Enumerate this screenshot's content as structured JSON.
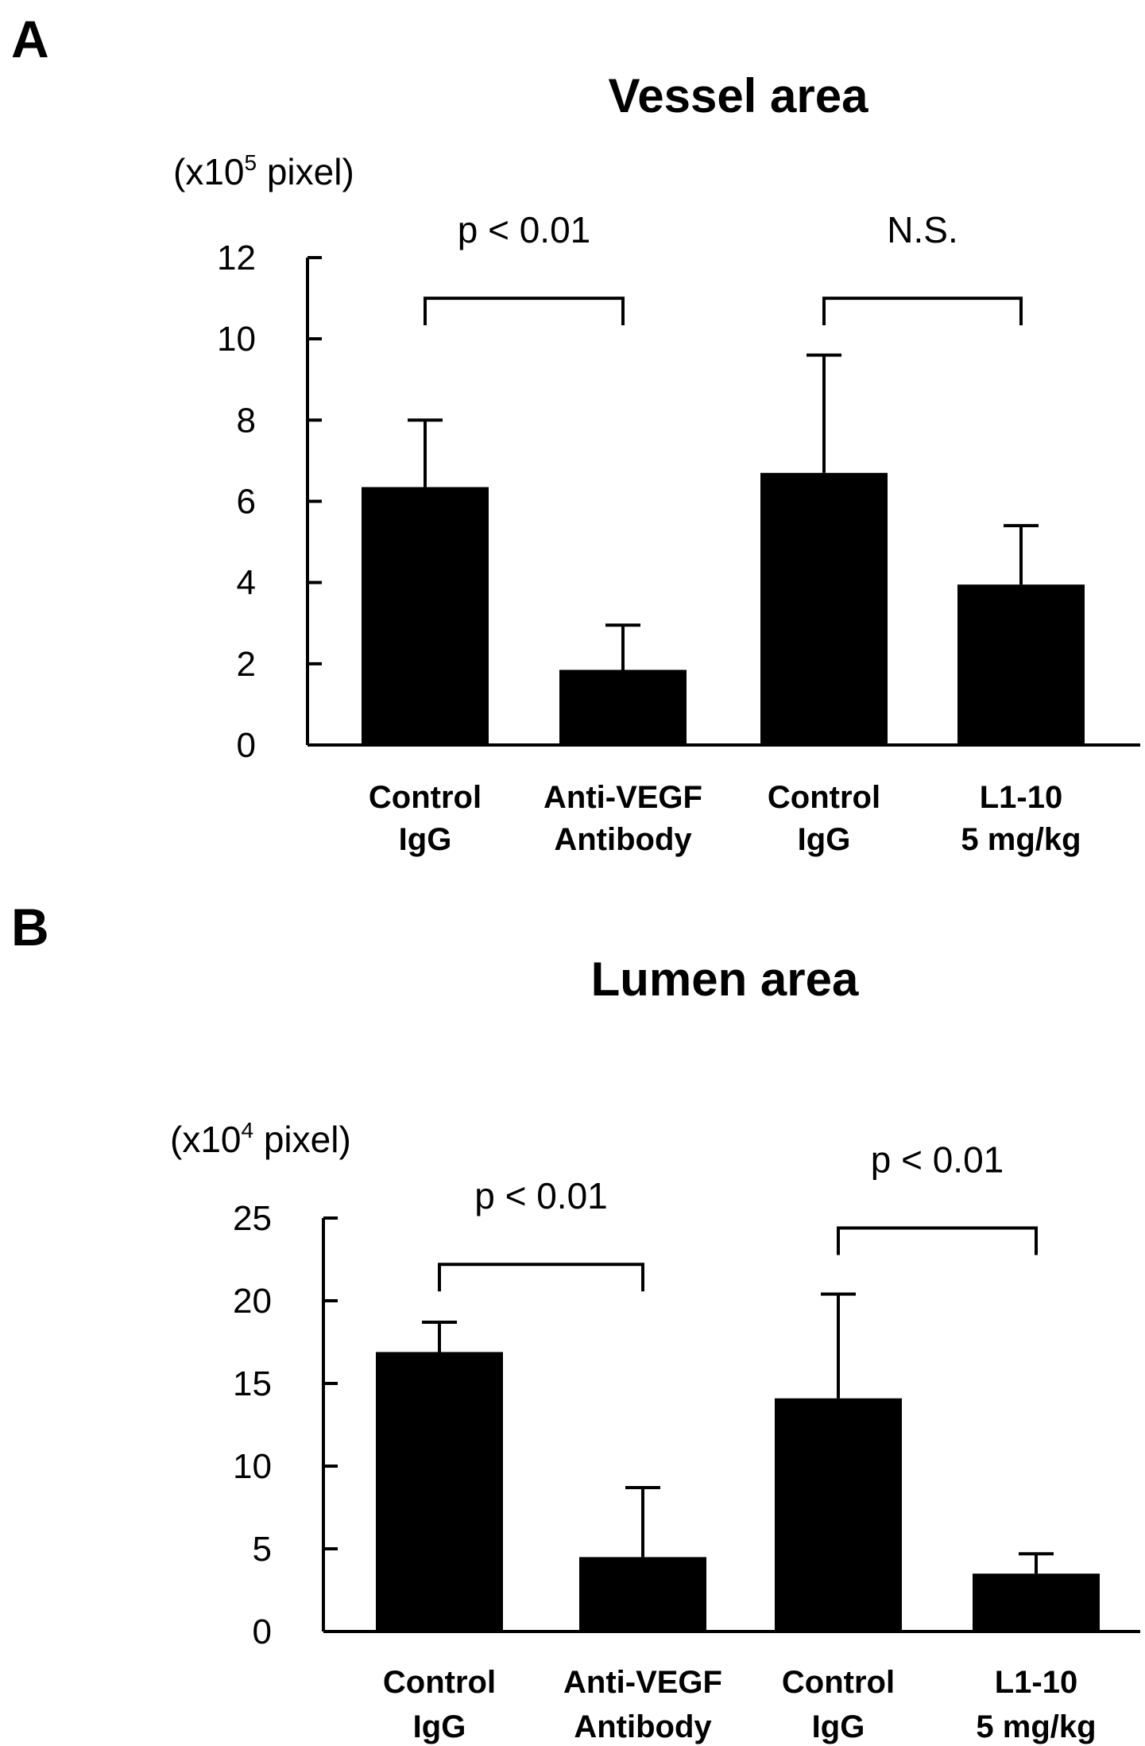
{
  "chart_data": [
    {
      "type": "bar",
      "panel_label": "A",
      "title": "Vessel area",
      "ylabel": "(x10",
      "ylabel_exponent": "5",
      "ylabel_suffix": " pixel)",
      "ylim": [
        0,
        12
      ],
      "yticks": [
        "0",
        "2",
        "4",
        "6",
        "8",
        "10",
        "12"
      ],
      "categories": [
        [
          "Control",
          "IgG"
        ],
        [
          "Anti-VEGF",
          "Antibody"
        ],
        [
          "Control",
          "IgG"
        ],
        [
          "L1-10",
          "5 mg/kg"
        ]
      ],
      "values": [
        6.35,
        1.85,
        6.7,
        3.95
      ],
      "errors": [
        1.65,
        1.1,
        2.9,
        1.45
      ],
      "significance": [
        {
          "groups": [
            0,
            1
          ],
          "label": "p < 0.01",
          "level": 11.0
        },
        {
          "groups": [
            2,
            3
          ],
          "label": "N.S.",
          "level": 11.0
        }
      ],
      "bar_color": "#000000",
      "grid": false
    },
    {
      "type": "bar",
      "panel_label": "B",
      "title": "Lumen area",
      "ylabel": "(x10",
      "ylabel_exponent": "4",
      "ylabel_suffix": " pixel)",
      "ylim": [
        0,
        25
      ],
      "yticks": [
        "0",
        "5",
        "10",
        "15",
        "20",
        "25"
      ],
      "categories": [
        [
          "Control",
          "IgG"
        ],
        [
          "Anti-VEGF",
          "Antibody"
        ],
        [
          "Control",
          "IgG"
        ],
        [
          "L1-10",
          "5 mg/kg"
        ]
      ],
      "values": [
        16.9,
        4.5,
        14.1,
        3.5
      ],
      "errors": [
        1.8,
        4.2,
        6.3,
        1.2
      ],
      "significance": [
        {
          "groups": [
            0,
            1
          ],
          "label": "p < 0.01",
          "level": 22.2
        },
        {
          "groups": [
            2,
            3
          ],
          "label": "p < 0.01",
          "level": 24.4
        }
      ],
      "bar_color": "#000000",
      "grid": false
    }
  ]
}
